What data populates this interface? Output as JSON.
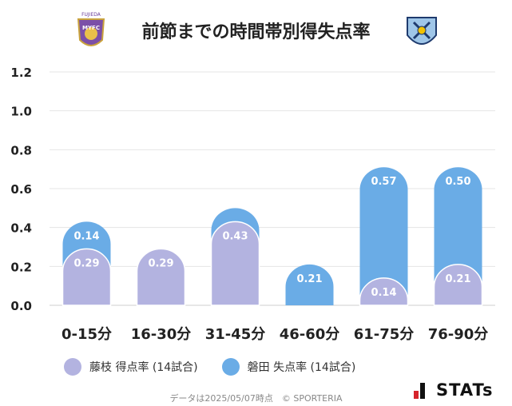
{
  "chart_data": {
    "type": "bar",
    "title": "前節までの時間帯別得失点率",
    "categories": [
      "0-15分",
      "16-30分",
      "31-45分",
      "46-60分",
      "61-75分",
      "76-90分"
    ],
    "series": [
      {
        "name": "藤枝 得点率 (14試合)",
        "values": [
          0.29,
          0.29,
          0.43,
          0.0,
          0.14,
          0.21
        ],
        "labels": [
          "0.29",
          "0.29",
          "0.43",
          "",
          "0.14",
          "0.21"
        ],
        "color": "#b3b3e0"
      },
      {
        "name": "磐田 失点率 (14試合)",
        "values": [
          0.14,
          0.0,
          0.07,
          0.21,
          0.57,
          0.5
        ],
        "labels": [
          "0.14",
          "",
          "",
          "0.21",
          "0.57",
          "0.50"
        ],
        "color": "#6aace6"
      }
    ],
    "stacked": true,
    "yticks": [
      "1.2",
      "1.0",
      "0.8",
      "0.6",
      "0.4",
      "0.2",
      "0.0"
    ],
    "ylim": [
      0,
      1.2
    ],
    "grid": true,
    "legend_position": "bottom"
  },
  "footer": "データは2025/05/07時点　© SPORTERIA",
  "brand": "STATs",
  "logos": {
    "left": "FUJIEDA MYFC crest",
    "right": "Jubilo Iwata crest"
  }
}
